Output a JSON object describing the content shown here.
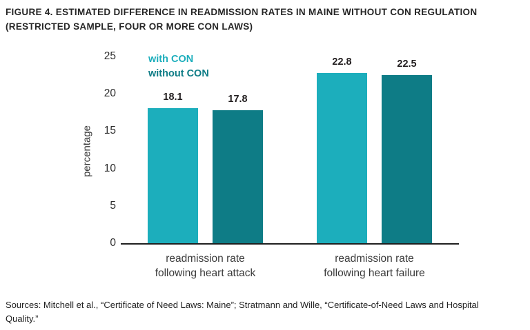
{
  "figure": {
    "title": "FIGURE 4. ESTIMATED DIFFERENCE IN READMISSION RATES IN MAINE WITHOUT CON REGULATION\n(RESTRICTED SAMPLE, FOUR OR MORE CON LAWS)",
    "sources": "Sources: Mitchell et al., “Certificate of Need Laws: Maine”; Stratmann and Wille, “Certificate-of-Need Laws and Hospital\nQuality.”"
  },
  "chart_data": {
    "type": "bar",
    "title": "FIGURE 4. ESTIMATED DIFFERENCE IN READMISSION RATES IN MAINE WITHOUT CON REGULATION (RESTRICTED SAMPLE, FOUR OR MORE CON LAWS)",
    "ylabel": "percentage",
    "xlabel": "",
    "ylim": [
      0,
      25
    ],
    "yticks": [
      0,
      5,
      10,
      15,
      20,
      25
    ],
    "grid": false,
    "legend_position": "top-left-inside",
    "value_labels": true,
    "categories": [
      "readmission rate\nfollowing heart attack",
      "readmission rate\nfollowing heart failure"
    ],
    "series": [
      {
        "name": "with CON",
        "color": "#1CAEBC",
        "values": [
          18.1,
          22.8
        ]
      },
      {
        "name": "without CON",
        "color": "#0E7C86",
        "values": [
          17.8,
          22.5
        ]
      }
    ]
  }
}
